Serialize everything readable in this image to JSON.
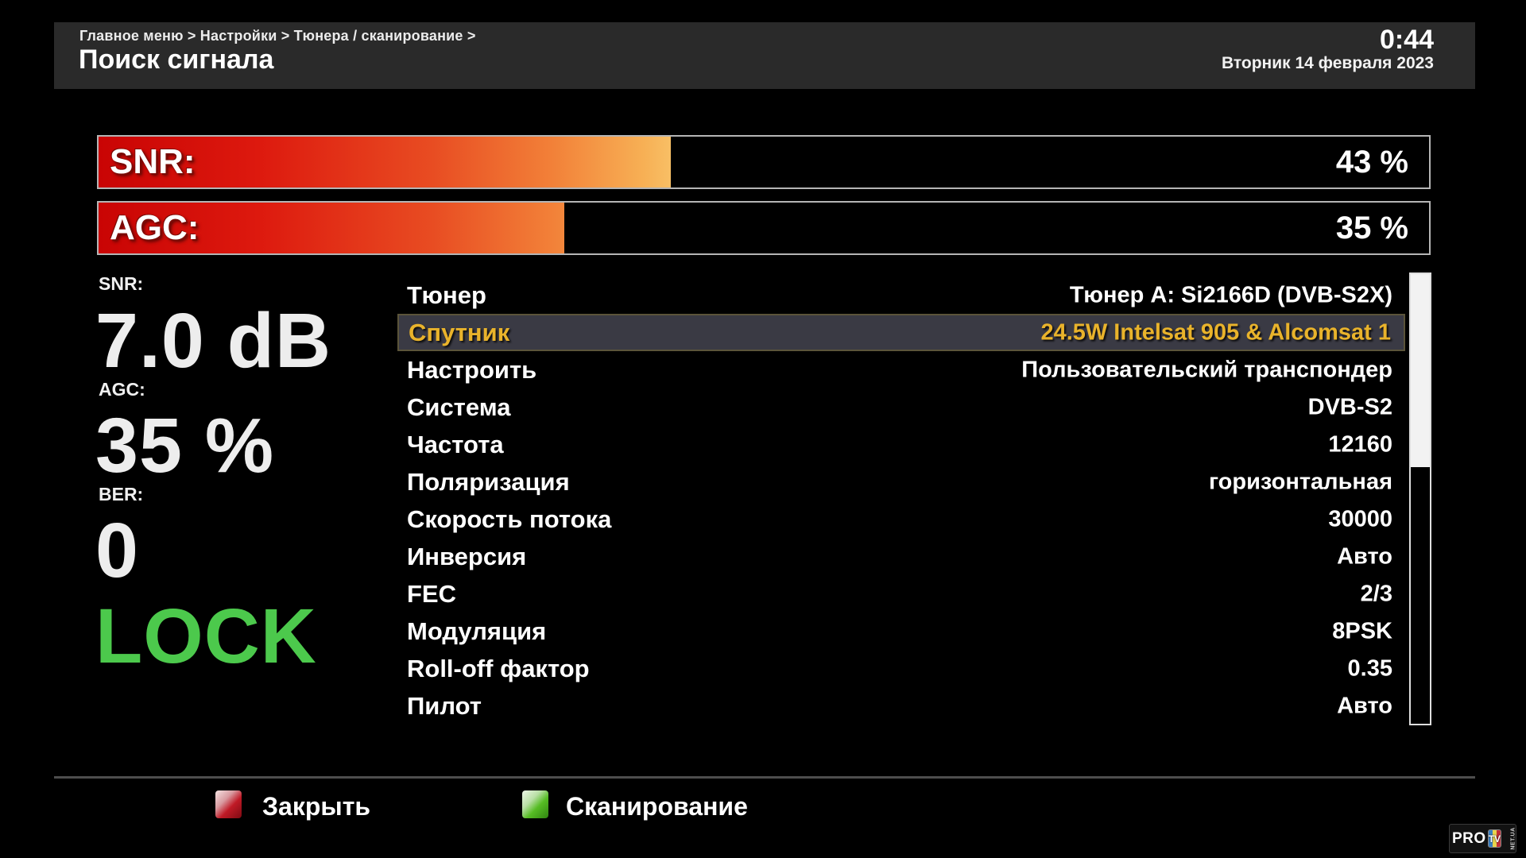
{
  "header": {
    "breadcrumb": "Главное меню > Настройки > Тюнера / сканирование >",
    "title": "Поиск сигнала",
    "clock": "0:44",
    "date": "Вторник 14 февраля 2023"
  },
  "signal_bars": [
    {
      "label": "SNR:",
      "value": "43 %",
      "percent": 43
    },
    {
      "label": "AGC:",
      "value": "35 %",
      "percent": 35
    }
  ],
  "stats": {
    "snr_label": "SNR:",
    "snr_value": "7.0 dB",
    "agc_label": "AGC:",
    "agc_value": "35 %",
    "ber_label": "BER:",
    "ber_value": "0",
    "lock_status": "LOCK"
  },
  "menu": {
    "items": [
      {
        "label": "Тюнер",
        "value": "Тюнер A: Si2166D (DVB-S2X)",
        "selected": false
      },
      {
        "label": "Спутник",
        "value": "24.5W Intelsat 905 & Alcomsat 1",
        "selected": true
      },
      {
        "label": "Настроить",
        "value": "Пользовательский транспондер",
        "selected": false
      },
      {
        "label": "Система",
        "value": "DVB-S2",
        "selected": false
      },
      {
        "label": "Частота",
        "value": "12160",
        "selected": false
      },
      {
        "label": "Поляризация",
        "value": "горизонтальная",
        "selected": false
      },
      {
        "label": "Скорость потока",
        "value": "30000",
        "selected": false
      },
      {
        "label": "Инверсия",
        "value": "Авто",
        "selected": false
      },
      {
        "label": "FEC",
        "value": "2/3",
        "selected": false
      },
      {
        "label": "Модуляция",
        "value": "8PSK",
        "selected": false
      },
      {
        "label": "Roll-off фактор",
        "value": "0.35",
        "selected": false
      },
      {
        "label": "Пилот",
        "value": "Авто",
        "selected": false
      }
    ]
  },
  "footer": {
    "close_label": "Закрыть",
    "scan_label": "Сканирование"
  },
  "logo": {
    "pro": "PRO",
    "tv": "TV",
    "suffix": "NET.UA"
  },
  "colors": {
    "selected_text": "#e9b32b",
    "selected_bg": "#3a3a44",
    "lock_green": "#4cc94c",
    "bar_gradient_start": "#c90404",
    "bar_gradient_end": "#f9dd85",
    "key_red": "#c01a26",
    "key_green": "#56bd24",
    "header_bg": "#2a2a2a"
  }
}
